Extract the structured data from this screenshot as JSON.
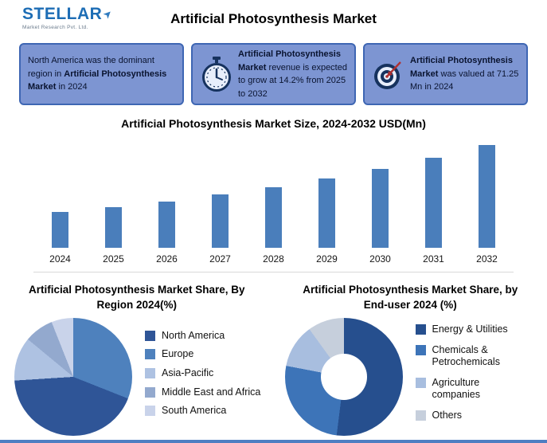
{
  "page": {
    "title": "Artificial Photosynthesis Market"
  },
  "logo": {
    "name": "STELLAR",
    "tagline": "Market Research Pvt. Ltd."
  },
  "info_boxes": [
    {
      "icon": null,
      "segments": [
        {
          "text": "North America was the dominant region in ",
          "bold": false
        },
        {
          "text": "Artificial Photosynthesis Market",
          "bold": true
        },
        {
          "text": " in 2024",
          "bold": false
        }
      ]
    },
    {
      "icon": "stopwatch-icon",
      "segments": [
        {
          "text": "Artificial Photosynthesis Market",
          "bold": true
        },
        {
          "text": " revenue is expected to grow at 14.2% from 2025 to 2032",
          "bold": false
        }
      ]
    },
    {
      "icon": "target-icon",
      "segments": [
        {
          "text": "Artificial Photosynthesis Market",
          "bold": true
        },
        {
          "text": " was valued at 71.25 Mn in 2024",
          "bold": false
        }
      ]
    }
  ],
  "chart_data": [
    {
      "type": "bar",
      "title": "Artificial Photosynthesis Market Size, 2024-2032 USD(Mn)",
      "categories": [
        "2024",
        "2025",
        "2026",
        "2027",
        "2028",
        "2029",
        "2030",
        "2031",
        "2032"
      ],
      "values": [
        71.25,
        81.37,
        92.92,
        106.12,
        121.18,
        138.39,
        158.04,
        180.48,
        206.11
      ],
      "ylim": [
        0,
        220
      ],
      "bar_color": "#4a7ebb",
      "xlabel": "",
      "ylabel": ""
    },
    {
      "type": "pie",
      "title": "Artificial Photosynthesis Market Share, By Region 2024(%)",
      "labels": [
        "North America",
        "Europe",
        "Asia-Pacific",
        "Middle East and Africa",
        "South America"
      ],
      "values": [
        43,
        31,
        12,
        8,
        6
      ],
      "colors": [
        "#2f5597",
        "#4e81bd",
        "#aec2e2",
        "#93a9ce",
        "#c9d3ea"
      ],
      "draw_order": [
        1,
        0,
        2,
        3,
        4
      ],
      "legend_position": "right"
    },
    {
      "type": "donut",
      "title": "Artificial Photosynthesis Market Share, by End-user 2024 (%)",
      "labels": [
        "Energy & Utilities",
        "Chemicals & Petrochemicals",
        "Agriculture companies",
        "Others"
      ],
      "values": [
        52,
        26,
        12,
        10
      ],
      "colors": [
        "#264f8e",
        "#3d74b8",
        "#a8bedf",
        "#c6cfdc"
      ],
      "draw_order": [
        0,
        1,
        2,
        3
      ],
      "legend_position": "right"
    }
  ]
}
